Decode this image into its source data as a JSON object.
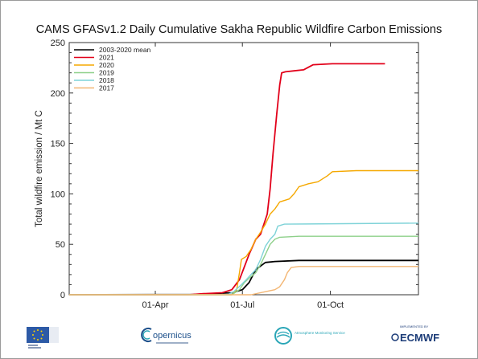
{
  "chart_data": {
    "type": "line",
    "title": "CAMS GFASv1.2 Daily Cumulative Sakha Republic Wildfire Carbon Emissions",
    "xlabel": "",
    "ylabel": "Total wildfire emission / Mt C",
    "xlim": [
      0,
      365
    ],
    "ylim": [
      0,
      250
    ],
    "yticks": [
      0,
      50,
      100,
      150,
      200,
      250
    ],
    "xticks": [
      {
        "day": 90,
        "label": "01-Apr"
      },
      {
        "day": 181,
        "label": "01-Jul"
      },
      {
        "day": 273,
        "label": "01-Oct"
      }
    ],
    "legend_position": "top-left",
    "grid": false,
    "series": [
      {
        "name": "2003-2020 mean",
        "color": "#000000",
        "points": [
          [
            0,
            0
          ],
          [
            130,
            0.3
          ],
          [
            170,
            2
          ],
          [
            181,
            5
          ],
          [
            188,
            12
          ],
          [
            195,
            25
          ],
          [
            205,
            32
          ],
          [
            215,
            33
          ],
          [
            240,
            34
          ],
          [
            365,
            34
          ]
        ]
      },
      {
        "name": "2021",
        "color": "#e2001a",
        "points": [
          [
            0,
            0
          ],
          [
            125,
            0
          ],
          [
            140,
            1
          ],
          [
            160,
            2
          ],
          [
            170,
            5
          ],
          [
            178,
            15
          ],
          [
            182,
            25
          ],
          [
            188,
            40
          ],
          [
            195,
            55
          ],
          [
            200,
            60
          ],
          [
            207,
            80
          ],
          [
            210,
            105
          ],
          [
            213,
            140
          ],
          [
            217,
            180
          ],
          [
            220,
            208
          ],
          [
            222,
            220
          ],
          [
            226,
            221
          ],
          [
            235,
            222
          ],
          [
            245,
            223
          ],
          [
            255,
            228
          ],
          [
            275,
            229
          ],
          [
            330,
            229
          ]
        ]
      },
      {
        "name": "2020",
        "color": "#f5a800",
        "points": [
          [
            0,
            0
          ],
          [
            170,
            0
          ],
          [
            175,
            5
          ],
          [
            178,
            22
          ],
          [
            180,
            35
          ],
          [
            185,
            38
          ],
          [
            190,
            45
          ],
          [
            195,
            55
          ],
          [
            200,
            62
          ],
          [
            205,
            70
          ],
          [
            210,
            80
          ],
          [
            215,
            85
          ],
          [
            220,
            92
          ],
          [
            230,
            95
          ],
          [
            235,
            100
          ],
          [
            240,
            107
          ],
          [
            250,
            110
          ],
          [
            260,
            112
          ],
          [
            270,
            118
          ],
          [
            275,
            122
          ],
          [
            300,
            123
          ],
          [
            365,
            123
          ]
        ]
      },
      {
        "name": "2019",
        "color": "#8ed08a",
        "points": [
          [
            0,
            0
          ],
          [
            170,
            0
          ],
          [
            178,
            5
          ],
          [
            183,
            12
          ],
          [
            190,
            18
          ],
          [
            195,
            22
          ],
          [
            200,
            30
          ],
          [
            205,
            40
          ],
          [
            210,
            50
          ],
          [
            215,
            55
          ],
          [
            220,
            57
          ],
          [
            240,
            58
          ],
          [
            365,
            58
          ]
        ]
      },
      {
        "name": "2018",
        "color": "#7fd3d8",
        "points": [
          [
            0,
            0
          ],
          [
            165,
            0
          ],
          [
            172,
            3
          ],
          [
            180,
            10
          ],
          [
            185,
            15
          ],
          [
            190,
            20
          ],
          [
            195,
            25
          ],
          [
            200,
            35
          ],
          [
            205,
            48
          ],
          [
            210,
            55
          ],
          [
            215,
            60
          ],
          [
            218,
            68
          ],
          [
            225,
            70
          ],
          [
            365,
            71
          ]
        ]
      },
      {
        "name": "2017",
        "color": "#f3b673",
        "points": [
          [
            0,
            0
          ],
          [
            190,
            0
          ],
          [
            205,
            3
          ],
          [
            215,
            5
          ],
          [
            220,
            8
          ],
          [
            225,
            15
          ],
          [
            228,
            22
          ],
          [
            232,
            27
          ],
          [
            240,
            28
          ],
          [
            365,
            28
          ]
        ]
      }
    ]
  },
  "logos": {
    "eu": "European Commission",
    "copernicus": "opernicus",
    "atmosphere": "Atmosphere Monitoring Service",
    "ecmwf": "ECMWF",
    "ecmwf_small": "IMPLEMENTED BY"
  },
  "colors": {
    "eu_blue": "#2d5aa6",
    "copernicus_blue": "#1b4f8a",
    "cams_teal": "#2aa6b7",
    "ecmwf_navy": "#1c3c78"
  }
}
